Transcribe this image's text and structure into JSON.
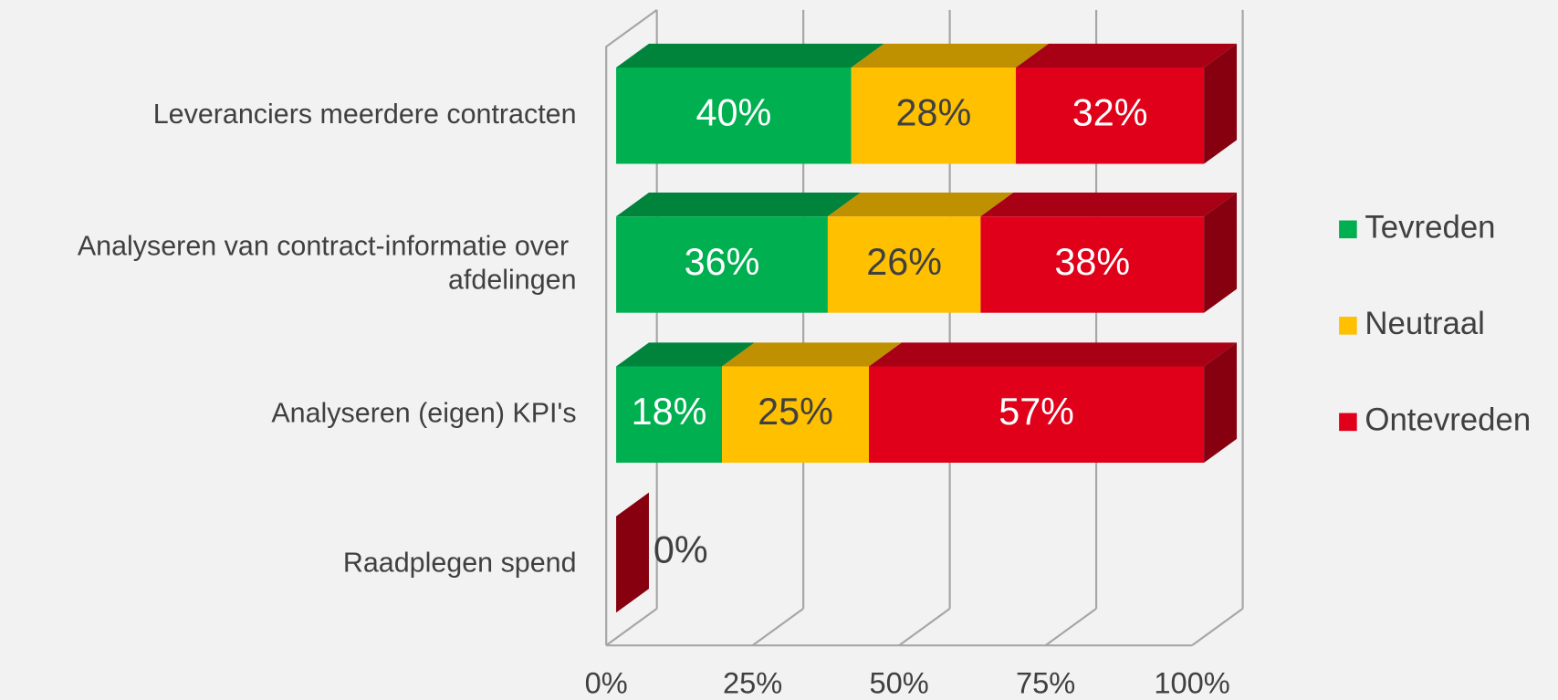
{
  "chart_data": {
    "type": "bar3d_stacked_horizontal",
    "categories": [
      "Leveranciers meerdere contracten",
      "Analyseren van contract-informatie over afdelingen",
      "Analyseren (eigen) KPI's",
      "Raadplegen spend"
    ],
    "series": [
      {
        "name": "Tevreden",
        "color": "#00b050",
        "values": [
          40,
          36,
          18,
          null
        ],
        "value_labels": [
          "40%",
          "36%",
          "18%",
          null
        ]
      },
      {
        "name": "Neutraal",
        "color": "#ffc000",
        "values": [
          28,
          26,
          25,
          null
        ],
        "value_labels": [
          "28%",
          "26%",
          "25%",
          null
        ]
      },
      {
        "name": "Ontevreden",
        "color": "#e0001a",
        "values": [
          32,
          38,
          57,
          0
        ],
        "value_labels": [
          "32%",
          "38%",
          "57%",
          "0%"
        ]
      }
    ],
    "xlim": [
      0,
      100
    ],
    "xticks": [
      {
        "value": 0,
        "label": "0%"
      },
      {
        "value": 25,
        "label": "25%"
      },
      {
        "value": 50,
        "label": "50%"
      },
      {
        "value": 75,
        "label": "75%"
      },
      {
        "value": 100,
        "label": "100%"
      }
    ],
    "grid": true,
    "legend": "right"
  }
}
